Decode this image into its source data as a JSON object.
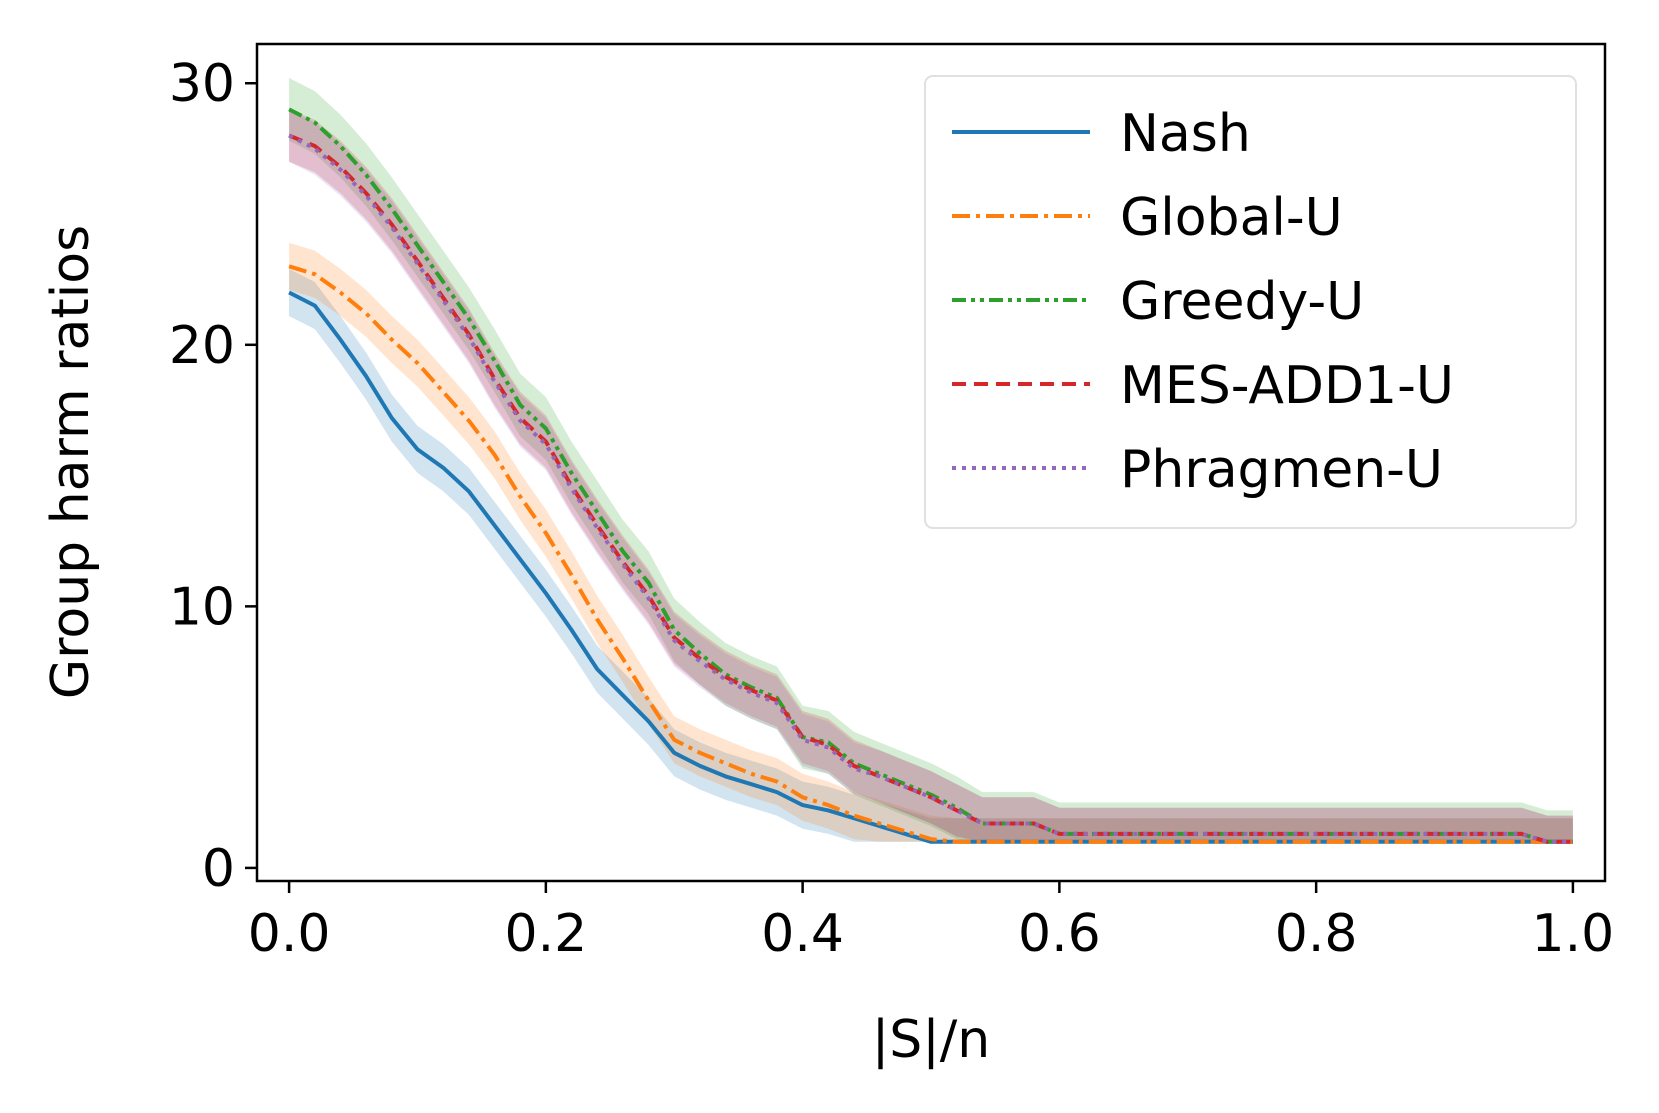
{
  "chart_data": {
    "type": "line",
    "title": "",
    "xlabel": "|S|/n",
    "ylabel": "Group harm ratios",
    "xlim": [
      -0.025,
      1.025
    ],
    "ylim": [
      -0.5,
      31.5
    ],
    "xticks": [
      0.0,
      0.2,
      0.4,
      0.6,
      0.8,
      1.0
    ],
    "xtick_labels": [
      "0.0",
      "0.2",
      "0.4",
      "0.6",
      "0.8",
      "1.0"
    ],
    "yticks": [
      0,
      10,
      20,
      30
    ],
    "ytick_labels": [
      "0",
      "10",
      "20",
      "30"
    ],
    "legend_position": "top-right",
    "grid": false,
    "x": [
      0.0,
      0.02,
      0.04,
      0.06,
      0.08,
      0.1,
      0.12,
      0.14,
      0.16,
      0.18,
      0.2,
      0.22,
      0.24,
      0.26,
      0.28,
      0.3,
      0.32,
      0.34,
      0.36,
      0.38,
      0.4,
      0.42,
      0.44,
      0.46,
      0.48,
      0.5,
      0.52,
      0.54,
      0.56,
      0.58,
      0.6,
      0.7,
      0.8,
      0.9,
      0.96,
      0.98,
      1.0
    ],
    "series": [
      {
        "name": "Nash",
        "color": "#1f77b4",
        "dash": "solid",
        "values": [
          22.0,
          21.5,
          20.2,
          18.8,
          17.2,
          16.0,
          15.3,
          14.4,
          13.1,
          11.8,
          10.5,
          9.1,
          7.6,
          6.6,
          5.6,
          4.4,
          3.9,
          3.5,
          3.2,
          2.9,
          2.4,
          2.2,
          1.9,
          1.6,
          1.3,
          1.0,
          1.0,
          1.0,
          1.0,
          1.0,
          1.0,
          1.0,
          1.0,
          1.0,
          1.0,
          1.0,
          1.0
        ],
        "band": 0.9
      },
      {
        "name": "Global-U",
        "color": "#ff7f0e",
        "dash": "dashdot",
        "values": [
          23.0,
          22.7,
          22.0,
          21.2,
          20.2,
          19.3,
          18.2,
          17.1,
          15.8,
          14.2,
          12.8,
          11.2,
          9.5,
          8.0,
          6.4,
          4.9,
          4.4,
          4.0,
          3.6,
          3.3,
          2.7,
          2.4,
          2.0,
          1.7,
          1.4,
          1.1,
          1.0,
          1.0,
          1.0,
          1.0,
          1.0,
          1.0,
          1.0,
          1.0,
          1.0,
          1.0,
          1.0
        ],
        "band": 0.9
      },
      {
        "name": "Greedy-U",
        "color": "#2ca02c",
        "dash": "dashdotdot",
        "values": [
          29.0,
          28.5,
          27.6,
          26.5,
          25.2,
          23.8,
          22.4,
          21.0,
          19.4,
          17.7,
          16.8,
          15.1,
          13.6,
          12.1,
          10.9,
          9.1,
          8.2,
          7.4,
          6.9,
          6.5,
          5.0,
          4.8,
          4.0,
          3.6,
          3.2,
          2.8,
          2.3,
          1.7,
          1.7,
          1.7,
          1.3,
          1.3,
          1.3,
          1.3,
          1.3,
          1.0,
          1.0
        ],
        "band": 1.2
      },
      {
        "name": "MES-ADD1-U",
        "color": "#d62728",
        "dash": "dashed",
        "values": [
          28.0,
          27.6,
          26.8,
          25.8,
          24.6,
          23.2,
          21.8,
          20.4,
          18.7,
          17.2,
          16.3,
          14.6,
          13.1,
          11.7,
          10.4,
          8.8,
          8.0,
          7.3,
          6.8,
          6.4,
          5.0,
          4.7,
          3.9,
          3.5,
          3.1,
          2.7,
          2.2,
          1.7,
          1.7,
          1.7,
          1.3,
          1.3,
          1.3,
          1.3,
          1.3,
          1.0,
          1.0
        ],
        "band": 1.0
      },
      {
        "name": "Phragmen-U",
        "color": "#9467bd",
        "dash": "dotted",
        "values": [
          28.0,
          27.5,
          26.7,
          25.7,
          24.5,
          23.1,
          21.7,
          20.3,
          18.6,
          17.1,
          16.2,
          14.5,
          13.0,
          11.6,
          10.3,
          8.7,
          7.9,
          7.2,
          6.7,
          6.3,
          4.9,
          4.6,
          3.8,
          3.5,
          3.1,
          2.7,
          2.2,
          1.7,
          1.7,
          1.7,
          1.3,
          1.3,
          1.3,
          1.3,
          1.3,
          1.0,
          1.0
        ],
        "band": 1.0
      }
    ]
  }
}
